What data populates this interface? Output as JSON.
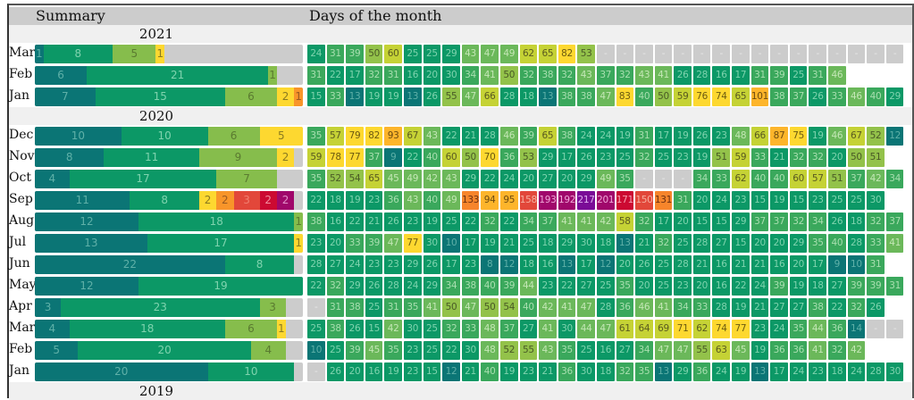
{
  "headers": {
    "summary": "Summary",
    "days": "Days of the month"
  },
  "chart_data": {
    "type": "heatmap",
    "title": "Days of the month",
    "summary_title": "Summary",
    "color_scale": [
      {
        "max": 14,
        "color": "#0b7575",
        "text": "#5fb0a8"
      },
      {
        "max": 30,
        "color": "#0c9866",
        "text": "#7fd3ae"
      },
      {
        "max": 40,
        "color": "#3aa85c",
        "text": "#a9dfb0"
      },
      {
        "max": 49,
        "color": "#6bb85a",
        "text": "#c4e7b6"
      },
      {
        "max": 56,
        "color": "#93c24a",
        "text": "#4a5a26"
      },
      {
        "max": 69,
        "color": "#c5d235",
        "text": "#5a5a20"
      },
      {
        "max": 85,
        "color": "#fdd830",
        "text": "#6b5a10"
      },
      {
        "max": 110,
        "color": "#fdb52b",
        "text": "#6b4a10"
      },
      {
        "max": 140,
        "color": "#f7852b",
        "text": "#6b3010"
      },
      {
        "max": 165,
        "color": "#e2473a",
        "text": "#f5b0a0"
      },
      {
        "max": 185,
        "color": "#cc0a32",
        "text": "#f6a0b0"
      },
      {
        "max": 210,
        "color": "#a0086b",
        "text": "#f0a8d8"
      },
      {
        "max": 9999,
        "color": "#7a0c97",
        "text": "#e0b0f0"
      }
    ],
    "years": [
      {
        "year": "2021",
        "months": [
          {
            "month": "Mar",
            "summary": [
              1,
              8,
              5,
              1
            ],
            "summary_bins": [
              0,
              1,
              2,
              3
            ],
            "empty_days": 16,
            "days": [
              24,
              31,
              39,
              50,
              60,
              25,
              25,
              29,
              43,
              47,
              49,
              62,
              65,
              82,
              53,
              null,
              null,
              null,
              null,
              null,
              null,
              null,
              null,
              null,
              null,
              null,
              null,
              null,
              null,
              null,
              null
            ]
          },
          {
            "month": "Feb",
            "summary": [
              6,
              21,
              1
            ],
            "summary_bins": [
              0,
              1,
              2
            ],
            "days": [
              31,
              22,
              17,
              32,
              31,
              16,
              20,
              30,
              34,
              41,
              50,
              32,
              38,
              32,
              43,
              37,
              32,
              43,
              41,
              26,
              28,
              16,
              17,
              31,
              39,
              25,
              31,
              46
            ]
          },
          {
            "month": "Jan",
            "summary": [
              7,
              15,
              6,
              2,
              1
            ],
            "summary_bins": [
              0,
              1,
              2,
              3,
              4
            ],
            "days": [
              15,
              33,
              13,
              19,
              19,
              13,
              26,
              55,
              47,
              66,
              28,
              18,
              13,
              38,
              38,
              47,
              83,
              40,
              50,
              59,
              76,
              74,
              65,
              101,
              38,
              37,
              26,
              33,
              46,
              40,
              29
            ]
          }
        ]
      },
      {
        "year": "2020",
        "months": [
          {
            "month": "Dec",
            "summary": [
              10,
              10,
              6,
              5
            ],
            "summary_bins": [
              0,
              1,
              2,
              3
            ],
            "days": [
              35,
              57,
              79,
              82,
              93,
              67,
              43,
              22,
              21,
              28,
              46,
              39,
              65,
              38,
              24,
              24,
              19,
              31,
              17,
              19,
              26,
              23,
              48,
              66,
              87,
              75,
              19,
              46,
              67,
              52,
              12
            ]
          },
          {
            "month": "Nov",
            "summary": [
              8,
              11,
              9,
              2
            ],
            "summary_bins": [
              0,
              1,
              2,
              3
            ],
            "days": [
              59,
              78,
              77,
              37,
              9,
              22,
              40,
              60,
              50,
              70,
              36,
              53,
              29,
              17,
              26,
              23,
              25,
              32,
              25,
              23,
              19,
              51,
              59,
              33,
              21,
              32,
              32,
              20,
              50,
              51
            ]
          },
          {
            "month": "Oct",
            "summary": [
              4,
              17,
              7
            ],
            "summary_bins": [
              0,
              1,
              2
            ],
            "days": [
              35,
              52,
              54,
              65,
              45,
              49,
              42,
              43,
              29,
              22,
              24,
              20,
              27,
              20,
              29,
              49,
              35,
              null,
              null,
              null,
              34,
              33,
              62,
              40,
              40,
              60,
              57,
              51,
              37,
              42,
              34
            ]
          },
          {
            "month": "Sep",
            "summary": [
              11,
              8,
              2,
              2,
              3,
              2,
              2
            ],
            "summary_bins": [
              0,
              1,
              3,
              4,
              5,
              6,
              7
            ],
            "days": [
              22,
              18,
              19,
              23,
              36,
              43,
              40,
              49,
              133,
              94,
              95,
              158,
              193,
              192,
              217,
              201,
              171,
              150,
              131,
              31,
              20,
              24,
              23,
              15,
              19,
              15,
              23,
              25,
              25,
              30
            ]
          },
          {
            "month": "Aug",
            "summary": [
              12,
              18,
              1
            ],
            "summary_bins": [
              0,
              1,
              2
            ],
            "days": [
              38,
              16,
              22,
              21,
              26,
              23,
              19,
              25,
              22,
              32,
              22,
              34,
              37,
              41,
              41,
              42,
              58,
              32,
              17,
              20,
              15,
              15,
              29,
              37,
              37,
              32,
              34,
              26,
              18,
              32,
              37
            ]
          },
          {
            "month": "Jul",
            "summary": [
              13,
              17,
              1
            ],
            "summary_bins": [
              0,
              1,
              3
            ],
            "days": [
              23,
              20,
              33,
              39,
              47,
              77,
              30,
              10,
              17,
              19,
              21,
              25,
              18,
              29,
              30,
              18,
              13,
              21,
              32,
              25,
              28,
              27,
              15,
              20,
              20,
              29,
              35,
              40,
              28,
              33,
              41
            ]
          },
          {
            "month": "Jun",
            "summary": [
              22,
              8
            ],
            "summary_bins": [
              0,
              1
            ],
            "days": [
              28,
              27,
              24,
              23,
              23,
              29,
              26,
              17,
              23,
              8,
              12,
              18,
              16,
              13,
              17,
              12,
              20,
              26,
              25,
              28,
              21,
              16,
              21,
              21,
              16,
              20,
              17,
              9,
              10,
              31
            ]
          },
          {
            "month": "May",
            "summary": [
              12,
              19
            ],
            "summary_bins": [
              0,
              1
            ],
            "days": [
              22,
              32,
              29,
              26,
              28,
              24,
              29,
              34,
              38,
              40,
              39,
              44,
              23,
              22,
              27,
              25,
              35,
              20,
              25,
              23,
              20,
              16,
              22,
              24,
              39,
              19,
              18,
              27,
              39,
              39,
              31
            ]
          },
          {
            "month": "Apr",
            "summary": [
              3,
              23,
              3
            ],
            "summary_bins": [
              0,
              1,
              2
            ],
            "days": [
              null,
              31,
              38,
              25,
              31,
              35,
              41,
              50,
              47,
              50,
              54,
              40,
              42,
              41,
              47,
              28,
              36,
              46,
              41,
              34,
              33,
              28,
              19,
              21,
              27,
              27,
              38,
              22,
              32,
              26
            ]
          },
          {
            "month": "Mar",
            "summary": [
              4,
              18,
              6,
              1
            ],
            "summary_bins": [
              0,
              1,
              2,
              3
            ],
            "days": [
              25,
              38,
              26,
              15,
              42,
              30,
              25,
              32,
              33,
              48,
              37,
              27,
              41,
              30,
              44,
              47,
              61,
              64,
              69,
              71,
              62,
              74,
              77,
              23,
              24,
              35,
              44,
              36,
              14,
              null,
              null
            ]
          },
          {
            "month": "Feb",
            "summary": [
              5,
              20,
              4
            ],
            "summary_bins": [
              0,
              1,
              2
            ],
            "days": [
              10,
              25,
              39,
              45,
              35,
              23,
              25,
              22,
              30,
              48,
              52,
              55,
              43,
              35,
              25,
              16,
              27,
              34,
              47,
              47,
              55,
              63,
              45,
              19,
              36,
              36,
              41,
              32,
              42
            ]
          },
          {
            "month": "Jan",
            "summary": [
              20,
              10
            ],
            "summary_bins": [
              0,
              1
            ],
            "days": [
              null,
              26,
              20,
              16,
              19,
              23,
              15,
              12,
              21,
              40,
              19,
              23,
              21,
              36,
              30,
              18,
              32,
              35,
              13,
              29,
              36,
              24,
              19,
              13,
              17,
              24,
              23,
              18,
              24,
              28,
              30
            ]
          }
        ]
      },
      {
        "year": "2019",
        "months": []
      }
    ],
    "summary_bin_colors": [
      {
        "color": "#0b7575",
        "text": "#5fb0a8"
      },
      {
        "color": "#0c9866",
        "text": "#7fd3ae"
      },
      {
        "color": "#86bd4c",
        "text": "#5a7a30"
      },
      {
        "color": "#fdd830",
        "text": "#8a7a20"
      },
      {
        "color": "#f8952a",
        "text": "#9a5a20"
      },
      {
        "color": "#e2473a",
        "text": "#f08070"
      },
      {
        "color": "#cc0a32",
        "text": "#f090a0"
      },
      {
        "color": "#a0086b",
        "text": "#e090c8"
      }
    ],
    "empty_label": "-"
  }
}
